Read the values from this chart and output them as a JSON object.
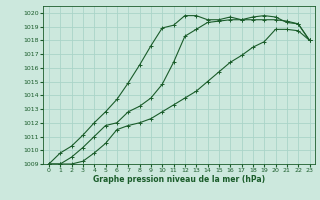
{
  "bg_color": "#cce8dd",
  "grid_color": "#aad4c8",
  "line_color": "#1a5c2a",
  "xlabel": "Graphe pression niveau de la mer (hPa)",
  "xlim": [
    -0.5,
    23.5
  ],
  "ylim": [
    1009,
    1020.5
  ],
  "xticks": [
    0,
    1,
    2,
    3,
    4,
    5,
    6,
    7,
    8,
    9,
    10,
    11,
    12,
    13,
    14,
    15,
    16,
    17,
    18,
    19,
    20,
    21,
    22,
    23
  ],
  "yticks": [
    1009,
    1010,
    1011,
    1012,
    1013,
    1014,
    1015,
    1016,
    1017,
    1018,
    1019,
    1020
  ],
  "line1_x": [
    0,
    1,
    2,
    3,
    4,
    5,
    6,
    7,
    8,
    9,
    10,
    11,
    12,
    13,
    14,
    15,
    16,
    17,
    18,
    19,
    20,
    21,
    22,
    23
  ],
  "line1_y": [
    1009.0,
    1009.8,
    1010.3,
    1011.1,
    1012.0,
    1012.8,
    1013.7,
    1014.9,
    1016.2,
    1017.6,
    1018.9,
    1019.1,
    1019.8,
    1019.8,
    1019.5,
    1019.5,
    1019.7,
    1019.5,
    1019.7,
    1019.8,
    1019.7,
    1019.3,
    1019.2,
    1018.0
  ],
  "line2_x": [
    0,
    1,
    2,
    3,
    4,
    5,
    6,
    7,
    8,
    9,
    10,
    11,
    12,
    13,
    14,
    15,
    16,
    17,
    18,
    19,
    20,
    21,
    22,
    23
  ],
  "line2_y": [
    1009.0,
    1009.0,
    1009.5,
    1010.2,
    1011.0,
    1011.8,
    1012.0,
    1012.8,
    1013.2,
    1013.8,
    1014.8,
    1016.4,
    1018.3,
    1018.8,
    1019.3,
    1019.4,
    1019.5,
    1019.5,
    1019.5,
    1019.5,
    1019.5,
    1019.4,
    1019.2,
    1018.0
  ],
  "line3_x": [
    0,
    1,
    2,
    3,
    4,
    5,
    6,
    7,
    8,
    9,
    10,
    11,
    12,
    13,
    14,
    15,
    16,
    17,
    18,
    19,
    20,
    21,
    22,
    23
  ],
  "line3_y": [
    1009.0,
    1009.0,
    1009.0,
    1009.2,
    1009.8,
    1010.5,
    1011.5,
    1011.8,
    1012.0,
    1012.3,
    1012.8,
    1013.3,
    1013.8,
    1014.3,
    1015.0,
    1015.7,
    1016.4,
    1016.9,
    1017.5,
    1017.9,
    1018.8,
    1018.8,
    1018.7,
    1018.0
  ],
  "title_fontsize": 5.5,
  "tick_fontsize": 4.5,
  "lw": 0.8,
  "ms": 2.5
}
